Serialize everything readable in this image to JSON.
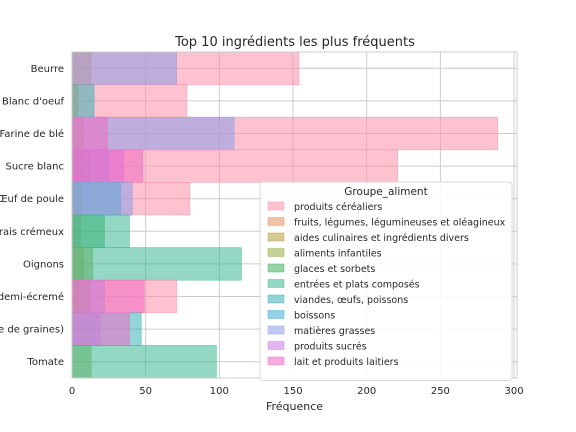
{
  "chart_data": {
    "type": "bar",
    "orientation": "horizontal",
    "stacking": "overlay",
    "title": "Top 10 ingrédients les plus fréquents",
    "xlabel": "Fréquence",
    "ylabel": "",
    "xlim": [
      0,
      302
    ],
    "xticks": [
      0,
      50,
      100,
      150,
      200,
      250,
      300
    ],
    "grid": true,
    "legend_position": "center-right",
    "legend_title": "Groupe_aliment",
    "categories": [
      "Beurre",
      "Blanc d'oeuf",
      "Farine de blé",
      "Sucre blanc",
      "Œuf de poule",
      "rais crémeux",
      "Oignons",
      "demi-écremé",
      "e de graines)",
      "Tomate"
    ],
    "series": [
      {
        "name": "produits céréaliers",
        "color": "#fa8fa8",
        "values": [
          154,
          78,
          289,
          221,
          80,
          0,
          0,
          71,
          0,
          0
        ]
      },
      {
        "name": "fruits, légumes, légumineuses et oléagineux",
        "color": "#e2945c",
        "values": [
          13,
          4,
          8,
          6,
          6,
          6,
          0,
          6,
          0,
          0
        ]
      },
      {
        "name": "aides culinaires et ingrédients divers",
        "color": "#b29e3f",
        "values": [
          0,
          0,
          0,
          12,
          0,
          0,
          8,
          12,
          0,
          0
        ]
      },
      {
        "name": "aliments infantiles",
        "color": "#93ad3f",
        "values": [
          0,
          0,
          0,
          0,
          0,
          0,
          14,
          0,
          0,
          13
        ]
      },
      {
        "name": "glaces et sorbets",
        "color": "#3fb15d",
        "values": [
          0,
          0,
          0,
          0,
          0,
          22,
          0,
          0,
          0,
          0
        ]
      },
      {
        "name": "entrées et plats composés",
        "color": "#3bb693",
        "values": [
          0,
          0,
          0,
          0,
          0,
          39,
          115,
          0,
          0,
          98
        ]
      },
      {
        "name": "viandes, œufs, poissons",
        "color": "#3ab0b8",
        "values": [
          0,
          15,
          0,
          0,
          33,
          0,
          0,
          0,
          47,
          0
        ]
      },
      {
        "name": "boissons",
        "color": "#3eaad8",
        "values": [
          0,
          0,
          0,
          0,
          0,
          0,
          0,
          0,
          0,
          0
        ]
      },
      {
        "name": "matières grasses",
        "color": "#8b9ce9",
        "values": [
          71,
          0,
          110,
          25,
          41,
          0,
          0,
          22,
          19,
          0
        ]
      },
      {
        "name": "produits sucrés",
        "color": "#cc79e6",
        "values": [
          0,
          0,
          0,
          35,
          0,
          0,
          0,
          0,
          0,
          0
        ]
      },
      {
        "name": "lait et produits laitiers",
        "color": "#f169c2",
        "values": [
          0,
          0,
          24,
          48,
          0,
          0,
          0,
          49,
          39,
          0
        ]
      }
    ]
  }
}
